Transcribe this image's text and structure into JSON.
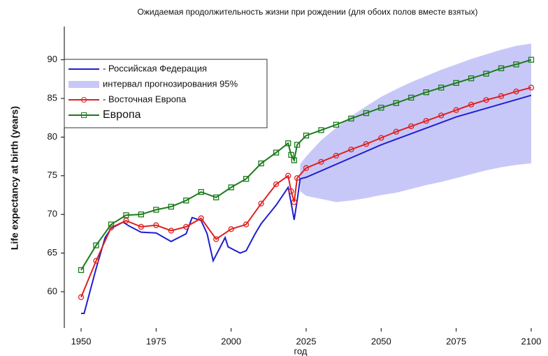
{
  "chart_data": {
    "type": "line",
    "title": "Ожидаемая продолжительность жизни при рождении (для обоих полов вместе взятых)",
    "ylabel": "Life expectancy at birth (years)",
    "xlabel": "год",
    "xlim": [
      1944.4,
      2105.6
    ],
    "ylim": [
      55.3,
      94.3
    ],
    "xticks": [
      1950,
      1975,
      2000,
      2025,
      2050,
      2075,
      2100
    ],
    "yticks": [
      60,
      65,
      70,
      75,
      80,
      85,
      90
    ],
    "legend": "upper left",
    "band": {
      "name": "интервал прогнозирования 95%",
      "color": "#c8c8f8",
      "x": [
        2023,
        2025,
        2030,
        2035,
        2040,
        2045,
        2050,
        2055,
        2060,
        2065,
        2070,
        2075,
        2080,
        2085,
        2090,
        2095,
        2100
      ],
      "lower": [
        73,
        72.4,
        72,
        71.6,
        71.8,
        72.1,
        72.5,
        72.8,
        73.3,
        73.8,
        74.2,
        74.7,
        75.2,
        75.7,
        76.1,
        76.4,
        76.6
      ],
      "upper": [
        76.5,
        77.5,
        79.6,
        81.2,
        82.7,
        84,
        85.2,
        86.2,
        87.1,
        87.9,
        88.7,
        89.4,
        90.1,
        90.7,
        91.3,
        91.8,
        92.1
      ]
    },
    "series": [
      {
        "name": "- Российская Федерация",
        "color": "#1f1fd0",
        "marker": "none",
        "x": [
          1950,
          1951,
          1955,
          1958,
          1960,
          1964,
          1966,
          1970,
          1975,
          1980,
          1985,
          1987,
          1990,
          1992,
          1994,
          1996,
          1998,
          1999,
          2003,
          2005,
          2008,
          2010,
          2015,
          2019,
          2020,
          2021,
          2022,
          2023,
          2025,
          2050,
          2075,
          2100
        ],
        "values": [
          57.2,
          57.2,
          63,
          67,
          68.2,
          69,
          68.5,
          67.7,
          67.6,
          66.5,
          67.5,
          69.6,
          69.2,
          67.5,
          64,
          65.5,
          67,
          65.8,
          65,
          65.3,
          67.5,
          68.8,
          71.2,
          73.5,
          71.5,
          69.3,
          71.8,
          74.6,
          74.8,
          79,
          82.6,
          85.4
        ]
      },
      {
        "name": "- Восточная Европа",
        "color": "#e02020",
        "marker": "circle",
        "x": [
          1950,
          1955,
          1960,
          1965,
          1970,
          1975,
          1980,
          1985,
          1990,
          1995,
          2000,
          2005,
          2010,
          2015,
          2019,
          2020,
          2021,
          2022,
          2025,
          2030,
          2035,
          2040,
          2045,
          2050,
          2055,
          2060,
          2065,
          2070,
          2075,
          2080,
          2085,
          2090,
          2095,
          2100
        ],
        "values": [
          59.3,
          64,
          68.3,
          69.2,
          68.4,
          68.6,
          67.9,
          68.4,
          69.5,
          66.8,
          68.1,
          68.7,
          71.4,
          73.9,
          75,
          73,
          71.6,
          74.7,
          76,
          76.8,
          77.6,
          78.4,
          79.1,
          79.9,
          80.7,
          81.4,
          82.1,
          82.8,
          83.5,
          84.2,
          84.8,
          85.3,
          85.9,
          86.4
        ]
      },
      {
        "name": "Европа",
        "color": "#1a7a1a",
        "marker": "square",
        "x": [
          1950,
          1955,
          1960,
          1965,
          1970,
          1975,
          1980,
          1985,
          1990,
          1995,
          2000,
          2005,
          2010,
          2015,
          2019,
          2020,
          2021,
          2022,
          2025,
          2030,
          2035,
          2040,
          2045,
          2050,
          2055,
          2060,
          2065,
          2070,
          2075,
          2080,
          2085,
          2090,
          2095,
          2100
        ],
        "values": [
          62.8,
          66,
          68.7,
          69.9,
          70,
          70.6,
          71,
          71.8,
          72.9,
          72.2,
          73.5,
          74.6,
          76.6,
          78,
          79.2,
          77.7,
          77,
          79,
          80.2,
          80.9,
          81.6,
          82.4,
          83.1,
          83.8,
          84.4,
          85.1,
          85.8,
          86.4,
          87,
          87.6,
          88.2,
          88.9,
          89.4,
          90
        ]
      }
    ]
  }
}
